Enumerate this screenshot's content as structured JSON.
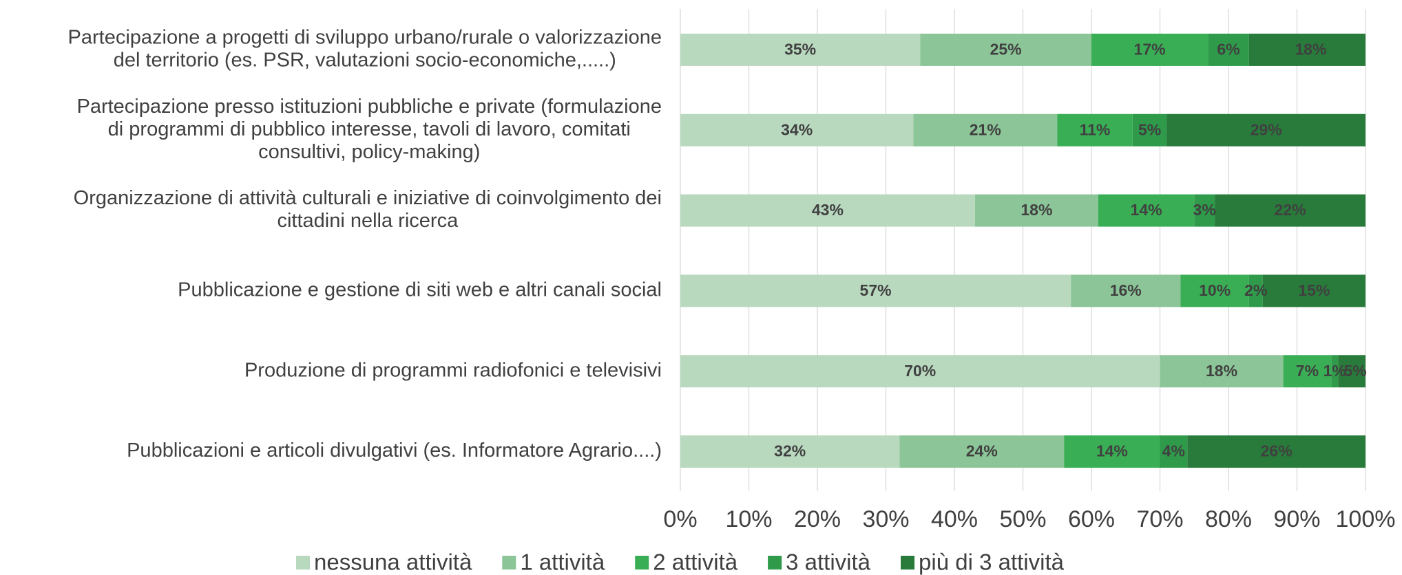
{
  "chart_data": {
    "type": "stacked_barh",
    "categories": [
      [
        "Partecipazione a progetti di sviluppo urbano/rurale o valorizzazione",
        "del territorio (es. PSR, valutazioni socio-economiche,.....)"
      ],
      [
        "Partecipazione presso istituzioni pubbliche e private (formulazione",
        "di programmi di pubblico interesse, tavoli di lavoro, comitati",
        "consultivi, policy-making)"
      ],
      [
        "Organizzazione di attività culturali e iniziative di coinvolgimento dei",
        "cittadini nella ricerca"
      ],
      [
        "Pubblicazione e gestione di siti web e altri canali social"
      ],
      [
        "Produzione di programmi radiofonici e televisivi"
      ],
      [
        "Pubblicazioni e articoli divulgativi (es. Informatore Agrario....)"
      ]
    ],
    "series": [
      {
        "name": "nessuna attività",
        "color": "#b9d9bf",
        "values": [
          35,
          34,
          43,
          57,
          70,
          32
        ],
        "value_labels": [
          "35%",
          "34%",
          "43%",
          "57%",
          "70%",
          "32%"
        ]
      },
      {
        "name": "1 attività",
        "color": "#8cc597",
        "values": [
          25,
          21,
          18,
          16,
          18,
          24
        ],
        "value_labels": [
          "25%",
          "21%",
          "18%",
          "16%",
          "18%",
          "24%"
        ]
      },
      {
        "name": "2 attività",
        "color": "#3aae55",
        "values": [
          17,
          11,
          14,
          10,
          7,
          14
        ],
        "value_labels": [
          "17%",
          "11%",
          "14%",
          "10%",
          "7%",
          "14%"
        ]
      },
      {
        "name": "3 attività",
        "color": "#2e9a4a",
        "values": [
          6,
          5,
          3,
          2,
          1,
          4
        ],
        "value_labels": [
          "6%",
          "5%",
          "3%",
          "2%",
          "1%",
          "4%"
        ]
      },
      {
        "name": "più di 3 attività",
        "color": "#287b3a",
        "values": [
          18,
          29,
          22,
          15,
          5,
          26
        ],
        "value_labels": [
          "18%",
          "29%",
          "22%",
          "15%",
          "5%",
          "26%"
        ]
      }
    ],
    "xlim": [
      0,
      100
    ],
    "xticks": [
      {
        "value": 0,
        "label": "0%"
      },
      {
        "value": 10,
        "label": "10%"
      },
      {
        "value": 20,
        "label": "20%"
      },
      {
        "value": 30,
        "label": "30%"
      },
      {
        "value": 40,
        "label": "40%"
      },
      {
        "value": 50,
        "label": "50%"
      },
      {
        "value": 60,
        "label": "60%"
      },
      {
        "value": 70,
        "label": "70%"
      },
      {
        "value": 80,
        "label": "80%"
      },
      {
        "value": 90,
        "label": "90%"
      },
      {
        "value": 100,
        "label": "100%"
      }
    ],
    "grid": true,
    "legend": "bottom"
  }
}
